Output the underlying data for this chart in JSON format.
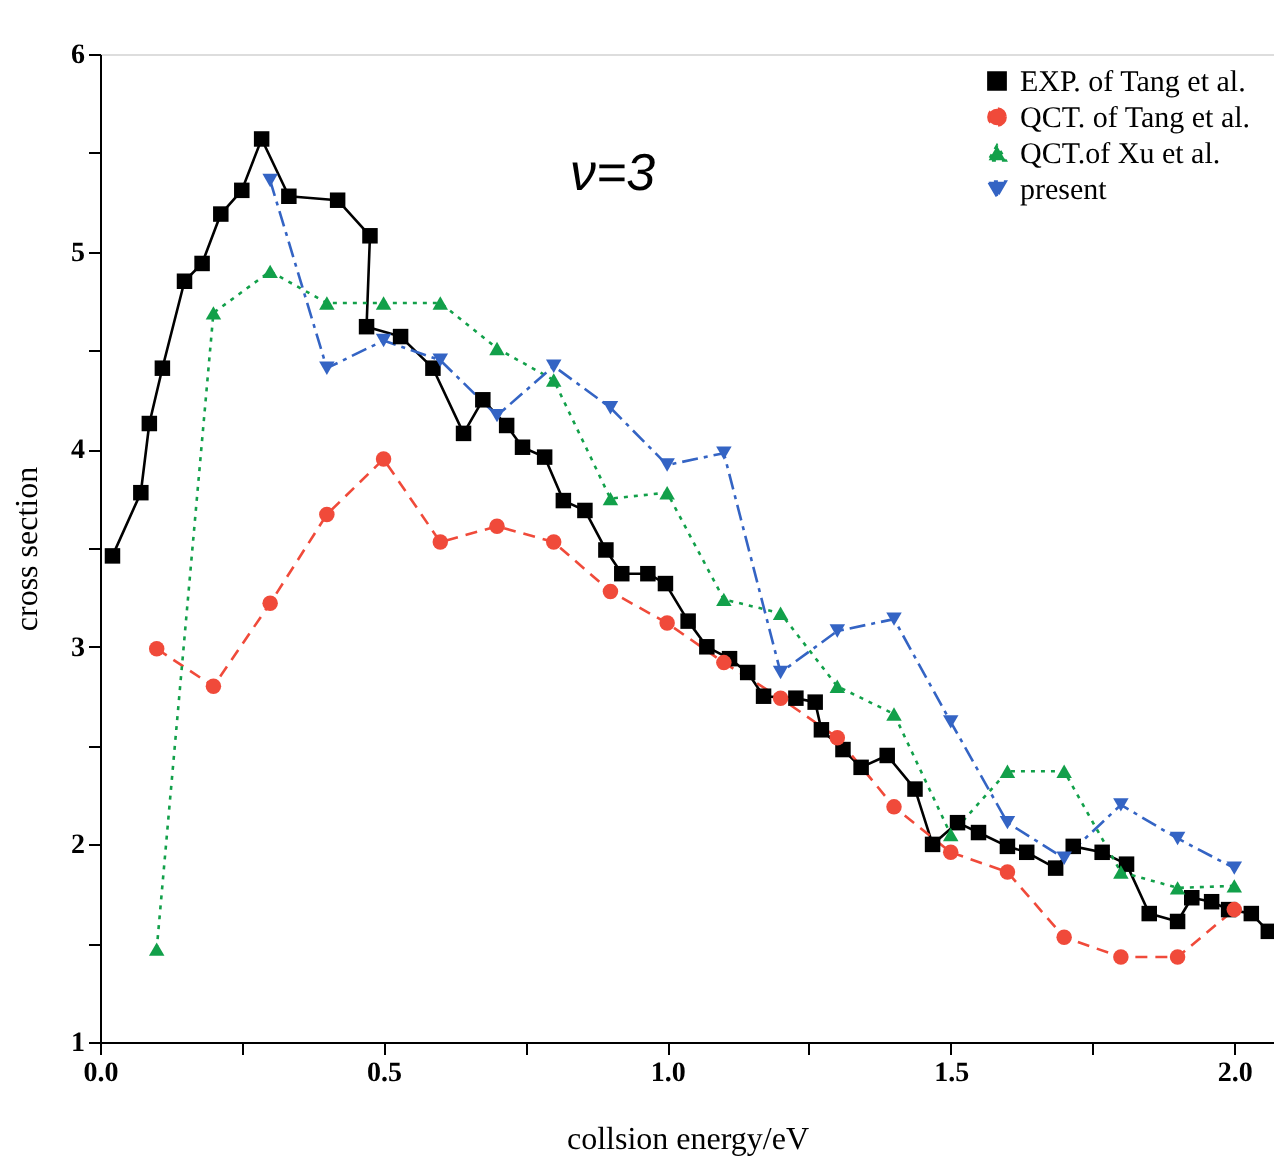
{
  "chart_data": {
    "type": "line",
    "xlabel": "collsion energy/eV",
    "ylabel": "cross section",
    "annotations": [
      "ν=3"
    ],
    "xlim": [
      0,
      2.07
    ],
    "ylim": [
      1,
      6
    ],
    "xticks": [
      {
        "value": 0,
        "label": "0.0"
      },
      {
        "value": 0.25,
        "label": null
      },
      {
        "value": 0.5,
        "label": "0.5"
      },
      {
        "value": 0.75,
        "label": null
      },
      {
        "value": 1,
        "label": "1.0"
      },
      {
        "value": 1.25,
        "label": null
      },
      {
        "value": 1.5,
        "label": "1.5"
      },
      {
        "value": 1.75,
        "label": null
      },
      {
        "value": 2,
        "label": "2.0"
      }
    ],
    "yticks": [
      1,
      {
        "value": 1.5,
        "label": null
      },
      2,
      {
        "value": 2.5,
        "label": null
      },
      3,
      {
        "value": 3.5,
        "label": null
      },
      4,
      {
        "value": 4.5,
        "label": null
      },
      5,
      {
        "value": 5.5,
        "label": null
      },
      6
    ],
    "grid": false,
    "legend": "top right",
    "series": [
      {
        "name": "EXP.  of  Tang et al.",
        "color": "#000000",
        "marker": "square",
        "line_style": "solid",
        "x": [
          0.022,
          0.072,
          0.087,
          0.11,
          0.149,
          0.18,
          0.213,
          0.25,
          0.285,
          0.333,
          0.419,
          0.476,
          0.47,
          0.53,
          0.587,
          0.641,
          0.675,
          0.717,
          0.745,
          0.784,
          0.817,
          0.855,
          0.892,
          0.92,
          0.966,
          0.997,
          1.037,
          1.07,
          1.11,
          1.142,
          1.17,
          1.227,
          1.261,
          1.272,
          1.31,
          1.342,
          1.388,
          1.437,
          1.468,
          1.512,
          1.549,
          1.6,
          1.634,
          1.685,
          1.716,
          1.767,
          1.81,
          1.85,
          1.9,
          1.925,
          1.96,
          1.99,
          2.03,
          2.06
        ],
        "values": [
          3.46,
          3.78,
          4.13,
          4.41,
          4.85,
          4.94,
          5.19,
          5.31,
          5.57,
          5.28,
          5.26,
          5.08,
          4.62,
          4.57,
          4.41,
          4.08,
          4.25,
          4.12,
          4.01,
          3.96,
          3.74,
          3.69,
          3.49,
          3.37,
          3.37,
          3.32,
          3.13,
          3.0,
          2.94,
          2.87,
          2.75,
          2.74,
          2.72,
          2.58,
          2.48,
          2.39,
          2.45,
          2.28,
          2.0,
          2.11,
          2.06,
          1.99,
          1.96,
          1.88,
          1.99,
          1.96,
          1.9,
          1.65,
          1.61,
          1.73,
          1.71,
          1.67,
          1.65,
          1.56
        ]
      },
      {
        "name": "QCT. of  Tang et al.",
        "color": "#f04a3a",
        "marker": "circle",
        "line_style": "dashed",
        "x": [
          0.1,
          0.2,
          0.3,
          0.4,
          0.5,
          0.6,
          0.7,
          0.8,
          0.9,
          1.0,
          1.1,
          1.2,
          1.3,
          1.4,
          1.5,
          1.6,
          1.7,
          1.8,
          1.9,
          2.0
        ],
        "values": [
          2.99,
          2.8,
          3.22,
          3.67,
          3.95,
          3.53,
          3.61,
          3.53,
          3.28,
          3.12,
          2.92,
          2.74,
          2.54,
          2.19,
          1.96,
          1.86,
          1.53,
          1.43,
          1.43,
          1.67
        ]
      },
      {
        "name": "QCT.of Xu et al.",
        "color": "#12a04a",
        "marker": "triangle",
        "line_style": "dotted",
        "x": [
          0.1,
          0.2,
          0.3,
          0.4,
          0.5,
          0.6,
          0.7,
          0.8,
          0.9,
          1.0,
          1.1,
          1.2,
          1.3,
          1.4,
          1.5,
          1.6,
          1.7,
          1.8,
          1.9,
          2.0
        ],
        "values": [
          1.47,
          4.69,
          4.9,
          4.74,
          4.74,
          4.74,
          4.51,
          4.35,
          3.75,
          3.78,
          3.24,
          3.17,
          2.8,
          2.66,
          2.05,
          2.37,
          2.37,
          1.86,
          1.78,
          1.79
        ]
      },
      {
        "name": "present",
        "color": "#3464c4",
        "marker": "triangle-down",
        "line_style": "dashdot",
        "x": [
          0.3,
          0.4,
          0.5,
          0.6,
          0.7,
          0.8,
          0.9,
          1.0,
          1.1,
          1.2,
          1.3,
          1.4,
          1.5,
          1.6,
          1.7,
          1.8,
          1.9,
          2.0
        ],
        "values": [
          5.36,
          4.41,
          4.55,
          4.45,
          4.17,
          4.42,
          4.21,
          3.92,
          3.98,
          2.87,
          3.08,
          3.14,
          2.62,
          2.11,
          1.93,
          2.2,
          2.03,
          1.88
        ]
      }
    ]
  }
}
